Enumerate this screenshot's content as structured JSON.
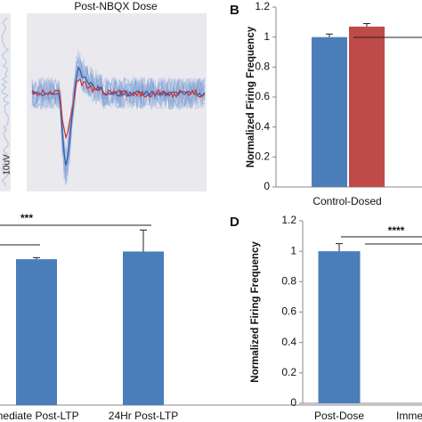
{
  "chart_data": [
    {
      "type": "trace",
      "title": "Post-NBQX Dose",
      "scale_label": "10uV"
    },
    {
      "type": "bar",
      "panel": "B",
      "y_label": "Normalized Firing Frequency",
      "categories": [
        "Control-Dosed"
      ],
      "series": [
        {
          "color": "#4a7ebb",
          "values": [
            1.0
          ],
          "errors": [
            0.02
          ]
        },
        {
          "color": "#be4b48",
          "values": [
            1.07
          ],
          "errors": [
            0.02
          ]
        }
      ],
      "ylim": [
        0,
        1.2
      ],
      "yticks": [
        0,
        0.2,
        0.4,
        0.6,
        0.8,
        1,
        1.2
      ]
    },
    {
      "type": "bar",
      "annotation": "***",
      "categories": [
        "mediate Post-LTP",
        "24Hr Post-LTP"
      ],
      "series": [
        {
          "color": "#4a7ebb",
          "values": [
            0.95,
            1.0
          ],
          "errors": [
            0.01,
            0.14
          ]
        }
      ],
      "ylim": [
        0,
        1.2
      ]
    },
    {
      "type": "bar",
      "panel": "D",
      "y_label": "Normalized Firing Frequency",
      "annotation": "****",
      "categories": [
        "Post-Dose",
        "Imme"
      ],
      "series": [
        {
          "color": "#4a7ebb",
          "values": [
            1.0,
            null
          ],
          "errors": [
            0.05,
            null
          ]
        }
      ],
      "ylim": [
        0,
        1.2
      ],
      "yticks": [
        0,
        0.2,
        0.4,
        0.6,
        0.8,
        1,
        1.2
      ]
    }
  ]
}
